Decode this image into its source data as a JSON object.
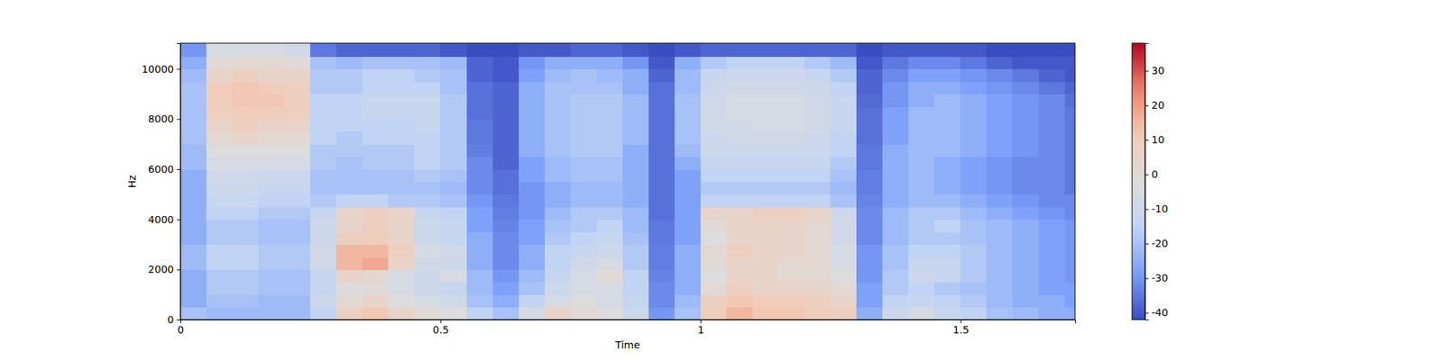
{
  "chart_data": {
    "type": "heatmap",
    "xlabel": "Time",
    "ylabel": "Hz",
    "xlim": [
      0,
      1.72
    ],
    "ylim": [
      0,
      11025
    ],
    "xticks": [
      0,
      0.5,
      1,
      1.5
    ],
    "yticks": [
      0,
      2000,
      4000,
      6000,
      8000,
      10000
    ],
    "x_bins": [
      0,
      0.05,
      0.1,
      0.15,
      0.2,
      0.25,
      0.3,
      0.35,
      0.4,
      0.45,
      0.5,
      0.55,
      0.6,
      0.65,
      0.7,
      0.75,
      0.8,
      0.85,
      0.9,
      0.95,
      1.0,
      1.05,
      1.1,
      1.15,
      1.2,
      1.25,
      1.3,
      1.35,
      1.4,
      1.45,
      1.5,
      1.55,
      1.6,
      1.65,
      1.7,
      1.72
    ],
    "y_bins": [
      0,
      500,
      1000,
      1500,
      2000,
      2500,
      3000,
      3500,
      4000,
      4500,
      5000,
      5500,
      6000,
      6500,
      7000,
      7500,
      8000,
      8500,
      9000,
      9500,
      10000,
      10500,
      11025
    ],
    "z": [
      [
        -20,
        -22,
        -22,
        -22,
        -22,
        -15,
        8,
        12,
        5,
        0,
        -2,
        -15,
        -20,
        -5,
        5,
        0,
        -2,
        -10,
        -30,
        -20,
        10,
        15,
        12,
        12,
        10,
        8,
        -25,
        -10,
        -5,
        -12,
        -15,
        -20,
        -22,
        -25,
        -25
      ],
      [
        -25,
        -20,
        -20,
        -22,
        -22,
        -10,
        2,
        5,
        -2,
        -5,
        -8,
        -20,
        -25,
        -15,
        -5,
        -2,
        -5,
        -12,
        -32,
        -22,
        8,
        12,
        10,
        10,
        8,
        5,
        -28,
        -15,
        -12,
        -15,
        -18,
        -22,
        -25,
        -25,
        -28
      ],
      [
        -25,
        -18,
        -18,
        -20,
        -20,
        -12,
        -2,
        0,
        -5,
        -10,
        -12,
        -22,
        -28,
        -20,
        -10,
        -5,
        -5,
        -15,
        -32,
        -25,
        0,
        8,
        5,
        5,
        5,
        0,
        -28,
        -18,
        -15,
        -18,
        -20,
        -22,
        -25,
        -28,
        -28
      ],
      [
        -25,
        -18,
        -18,
        -20,
        -20,
        -12,
        5,
        2,
        -5,
        -10,
        -5,
        -22,
        -30,
        -22,
        -12,
        -5,
        0,
        -15,
        -33,
        -25,
        -2,
        5,
        5,
        2,
        2,
        -2,
        -30,
        -18,
        -10,
        -12,
        -18,
        -22,
        -25,
        -28,
        -30
      ],
      [
        -22,
        -15,
        -15,
        -18,
        -18,
        -8,
        15,
        18,
        5,
        -8,
        -10,
        -25,
        -32,
        -25,
        -15,
        -8,
        -5,
        -18,
        -34,
        -25,
        0,
        5,
        5,
        2,
        2,
        -5,
        -30,
        -20,
        -12,
        -12,
        -18,
        -22,
        -25,
        -28,
        -30
      ],
      [
        -22,
        -15,
        -15,
        -18,
        -18,
        -8,
        15,
        15,
        8,
        -5,
        -8,
        -25,
        -32,
        -25,
        -15,
        -12,
        -10,
        -18,
        -34,
        -25,
        2,
        8,
        5,
        5,
        2,
        -5,
        -30,
        -20,
        -15,
        -15,
        -18,
        -22,
        -25,
        -28,
        -30
      ],
      [
        -25,
        -18,
        -18,
        -20,
        -20,
        -10,
        8,
        10,
        5,
        -10,
        -12,
        -25,
        -32,
        -28,
        -18,
        -15,
        -12,
        -20,
        -35,
        -28,
        -2,
        5,
        5,
        5,
        2,
        -8,
        -32,
        -22,
        -18,
        -18,
        -20,
        -22,
        -25,
        -28,
        -30
      ],
      [
        -25,
        -18,
        -18,
        -20,
        -20,
        -10,
        5,
        8,
        5,
        -10,
        -12,
        -28,
        -33,
        -28,
        -20,
        -18,
        -15,
        -22,
        -35,
        -28,
        0,
        5,
        5,
        5,
        2,
        -8,
        -32,
        -22,
        -18,
        -15,
        -20,
        -22,
        -25,
        -28,
        -30
      ],
      [
        -25,
        -15,
        -15,
        -18,
        -18,
        -12,
        5,
        8,
        5,
        -12,
        -15,
        -28,
        -34,
        -30,
        -22,
        -18,
        -18,
        -22,
        -36,
        -28,
        5,
        5,
        8,
        8,
        5,
        -10,
        -32,
        -22,
        -18,
        -18,
        -22,
        -25,
        -28,
        -30,
        -32
      ],
      [
        -25,
        -12,
        -12,
        -15,
        -15,
        -18,
        -15,
        -15,
        -18,
        -18,
        -20,
        -30,
        -35,
        -30,
        -25,
        -22,
        -22,
        -25,
        -36,
        -28,
        -15,
        -15,
        -15,
        -15,
        -15,
        -20,
        -33,
        -25,
        -22,
        -22,
        -25,
        -28,
        -30,
        -32,
        -32
      ],
      [
        -25,
        -10,
        -10,
        -12,
        -12,
        -20,
        -20,
        -20,
        -20,
        -20,
        -22,
        -32,
        -36,
        -30,
        -25,
        -22,
        -22,
        -25,
        -36,
        -28,
        -18,
        -18,
        -18,
        -18,
        -18,
        -22,
        -34,
        -25,
        -22,
        -25,
        -28,
        -30,
        -32,
        -32,
        -35
      ],
      [
        -25,
        -8,
        -8,
        -10,
        -10,
        -20,
        -20,
        -20,
        -20,
        -18,
        -20,
        -32,
        -36,
        -28,
        -22,
        -20,
        -20,
        -25,
        -36,
        -28,
        -15,
        -15,
        -15,
        -15,
        -15,
        -20,
        -34,
        -25,
        -22,
        -25,
        -28,
        -30,
        -32,
        -32,
        -35
      ],
      [
        -22,
        -5,
        -5,
        -5,
        -5,
        -18,
        -20,
        -18,
        -18,
        -15,
        -18,
        -32,
        -38,
        -28,
        -22,
        -20,
        -20,
        -25,
        -36,
        -25,
        -12,
        -12,
        -12,
        -12,
        -12,
        -18,
        -35,
        -25,
        -22,
        -25,
        -28,
        -30,
        -32,
        -32,
        -35
      ],
      [
        -22,
        -2,
        -2,
        -2,
        -2,
        -18,
        -18,
        -18,
        -18,
        -15,
        -18,
        -34,
        -38,
        -25,
        -20,
        -18,
        -18,
        -25,
        -36,
        -22,
        -10,
        -10,
        -10,
        -10,
        -10,
        -15,
        -35,
        -25,
        -22,
        -22,
        -25,
        -28,
        -30,
        -32,
        -35
      ],
      [
        -20,
        2,
        5,
        2,
        2,
        -15,
        -18,
        -15,
        -15,
        -15,
        -18,
        -35,
        -38,
        -25,
        -20,
        -18,
        -18,
        -22,
        -36,
        -20,
        -10,
        -8,
        -8,
        -8,
        -10,
        -15,
        -36,
        -28,
        -22,
        -22,
        -25,
        -28,
        -30,
        -32,
        -35
      ],
      [
        -20,
        5,
        8,
        5,
        5,
        -15,
        -15,
        -15,
        -15,
        -12,
        -18,
        -35,
        -38,
        -25,
        -20,
        -18,
        -18,
        -22,
        -36,
        -20,
        -8,
        -8,
        -5,
        -5,
        -8,
        -12,
        -36,
        -28,
        -22,
        -22,
        -25,
        -28,
        -30,
        -32,
        -35
      ],
      [
        -20,
        8,
        10,
        10,
        8,
        -15,
        -15,
        -12,
        -12,
        -12,
        -18,
        -36,
        -38,
        -25,
        -20,
        -18,
        -18,
        -22,
        -36,
        -20,
        -8,
        -5,
        -5,
        -5,
        -8,
        -12,
        -36,
        -28,
        -22,
        -22,
        -25,
        -28,
        -30,
        -32,
        -35
      ],
      [
        -20,
        10,
        12,
        12,
        8,
        -15,
        -15,
        -12,
        -12,
        -12,
        -18,
        -36,
        -38,
        -25,
        -20,
        -18,
        -18,
        -22,
        -36,
        -20,
        -8,
        -5,
        -5,
        -5,
        -8,
        -12,
        -37,
        -30,
        -25,
        -22,
        -25,
        -28,
        -30,
        -32,
        -36
      ],
      [
        -20,
        10,
        12,
        10,
        8,
        -18,
        -18,
        -15,
        -15,
        -15,
        -20,
        -36,
        -38,
        -25,
        -20,
        -20,
        -20,
        -25,
        -36,
        -22,
        -10,
        -8,
        -8,
        -8,
        -10,
        -15,
        -38,
        -30,
        -25,
        -25,
        -28,
        -30,
        -32,
        -35,
        -38
      ],
      [
        -22,
        5,
        8,
        5,
        5,
        -18,
        -18,
        -15,
        -15,
        -18,
        -20,
        -38,
        -40,
        -28,
        -22,
        -20,
        -22,
        -25,
        -38,
        -22,
        -12,
        -10,
        -10,
        -10,
        -12,
        -18,
        -38,
        -32,
        -28,
        -28,
        -30,
        -32,
        -35,
        -38,
        -40
      ],
      [
        -25,
        0,
        2,
        2,
        0,
        -20,
        -22,
        -20,
        -20,
        -20,
        -22,
        -38,
        -40,
        -30,
        -25,
        -25,
        -25,
        -30,
        -40,
        -25,
        -18,
        -15,
        -15,
        -15,
        -18,
        -22,
        -40,
        -35,
        -32,
        -32,
        -35,
        -38,
        -40,
        -40,
        -40
      ],
      [
        -30,
        -5,
        -5,
        -5,
        -8,
        -35,
        -38,
        -38,
        -38,
        -38,
        -40,
        -42,
        -42,
        -40,
        -40,
        -38,
        -38,
        -40,
        -42,
        -40,
        -38,
        -38,
        -38,
        -38,
        -38,
        -38,
        -42,
        -40,
        -40,
        -40,
        -40,
        -42,
        -42,
        -42,
        -42
      ]
    ],
    "colorbar": {
      "range": [
        -42,
        38
      ],
      "ticks": [
        -40,
        -30,
        -20,
        -10,
        0,
        10,
        20,
        30
      ]
    }
  }
}
